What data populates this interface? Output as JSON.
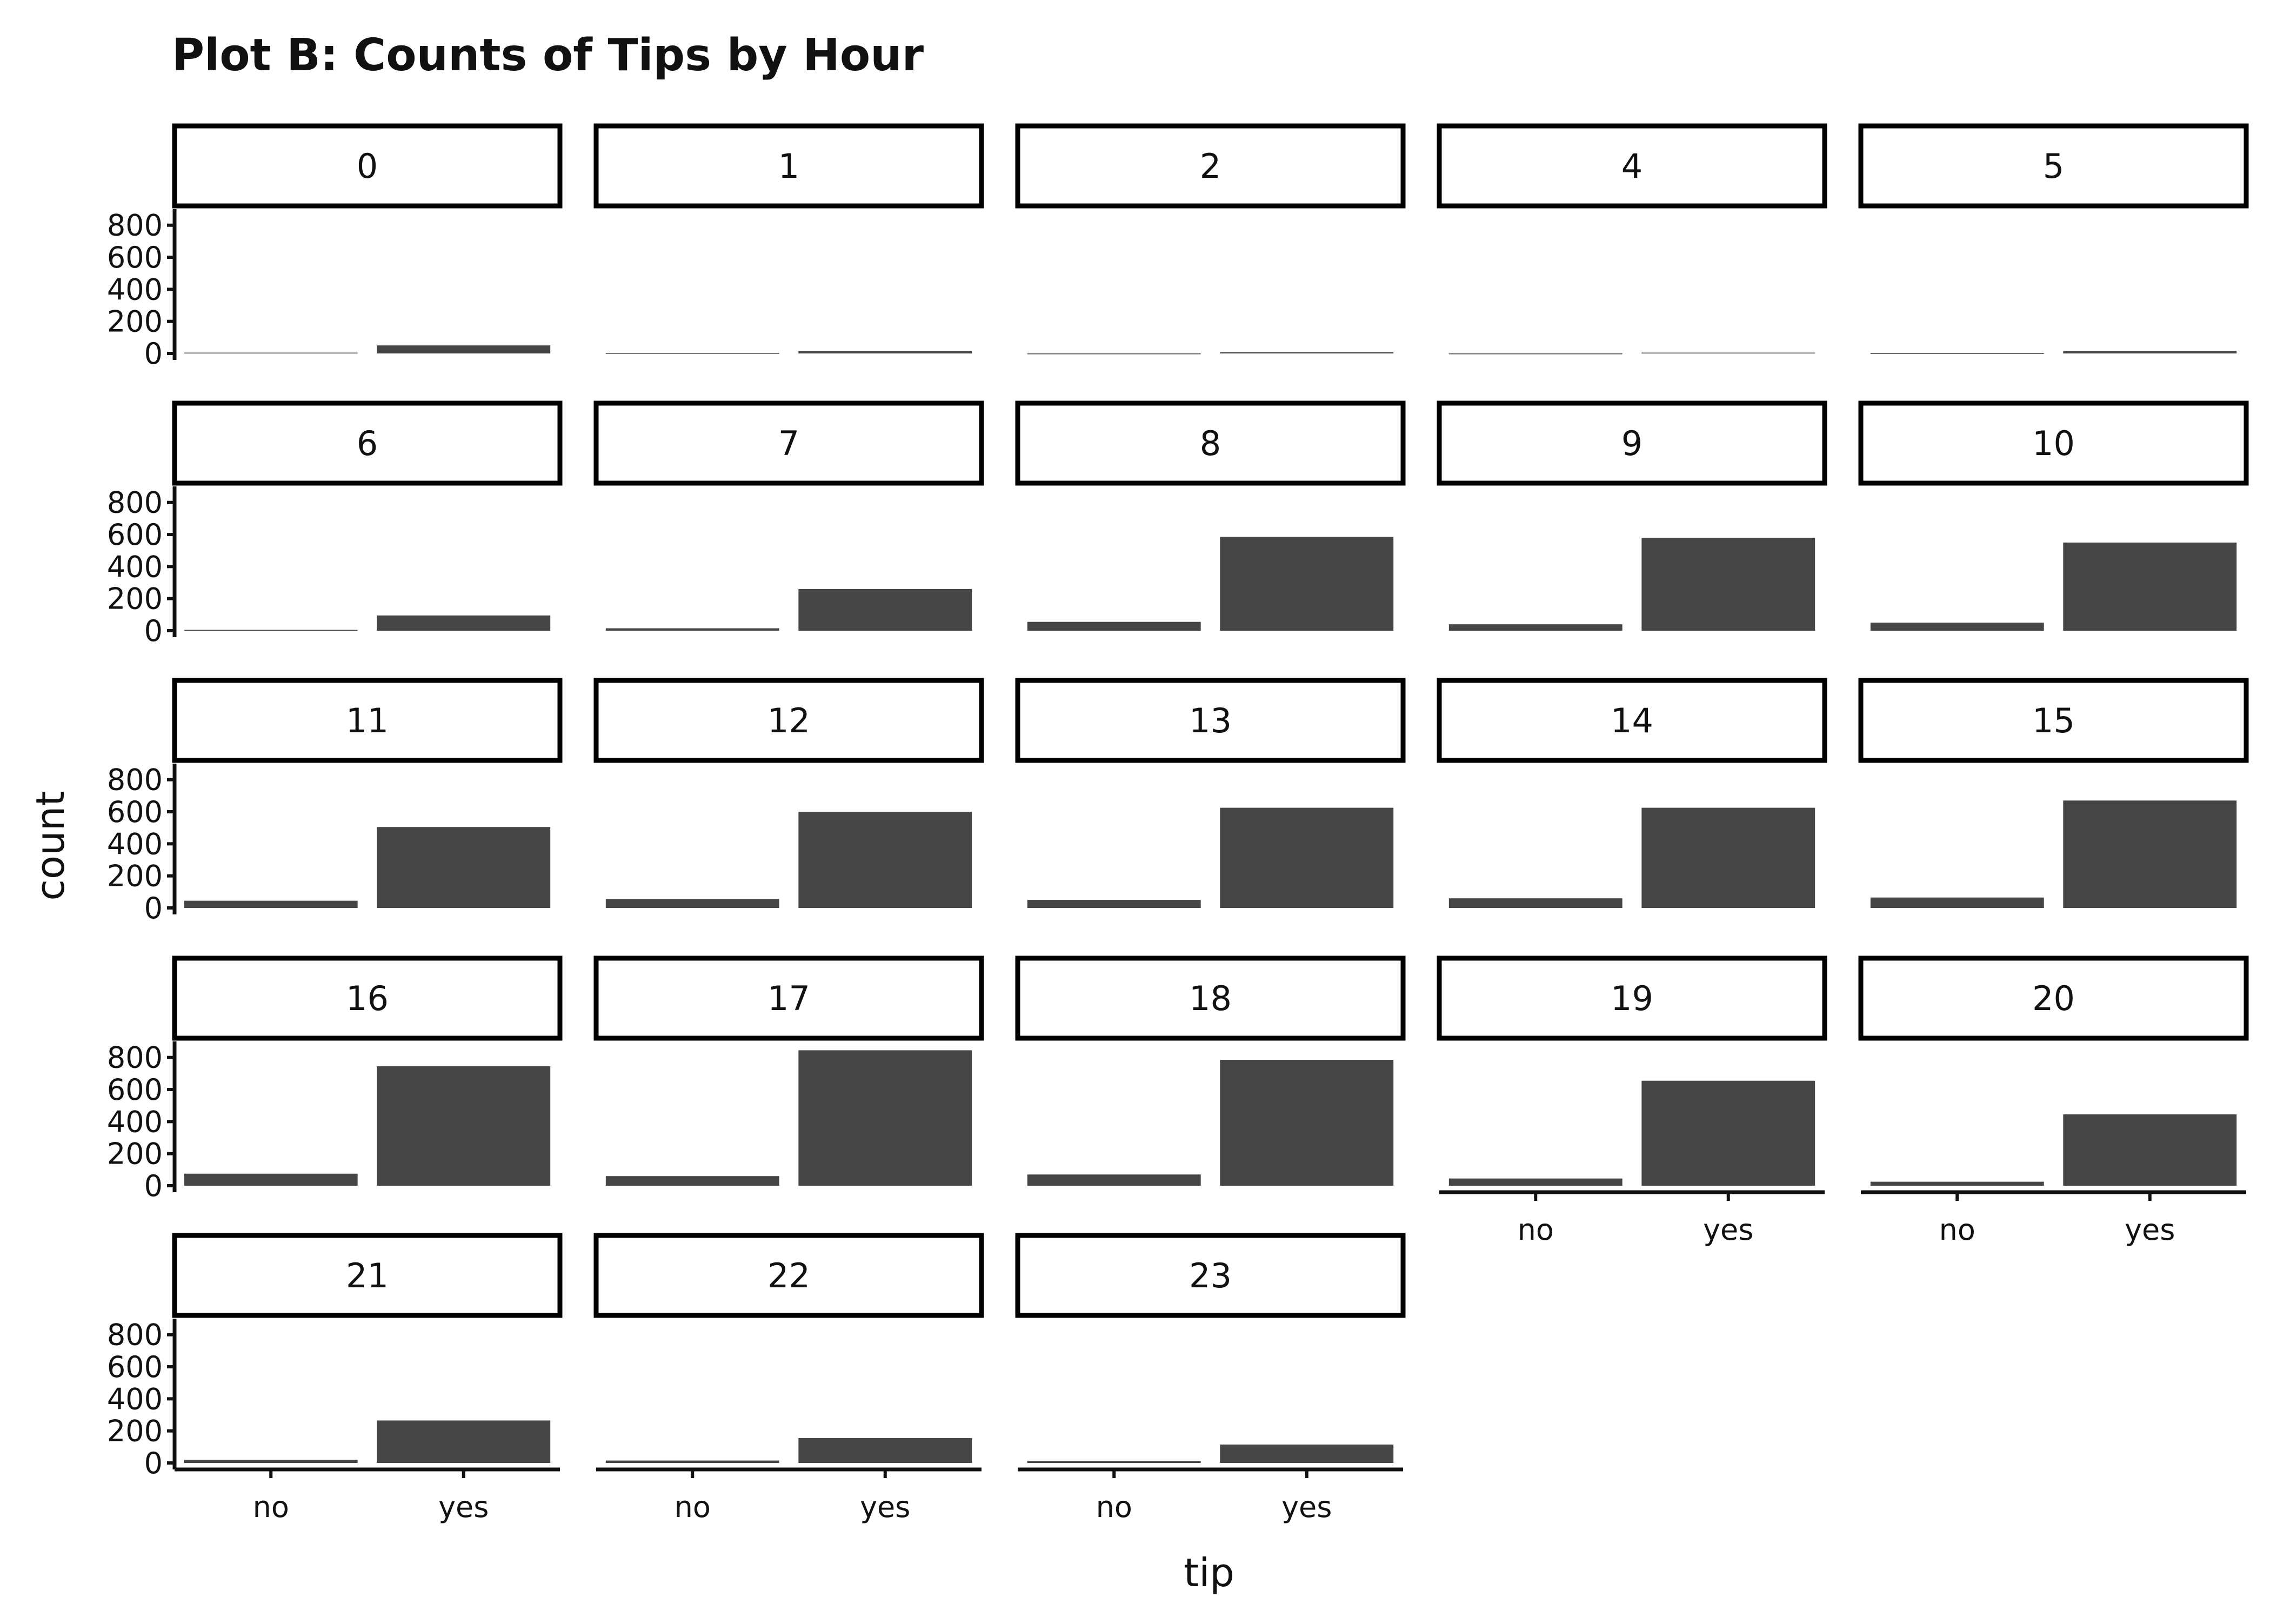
{
  "chart_data": {
    "type": "bar",
    "title": "Plot B: Counts of Tips by Hour",
    "xlabel": "tip",
    "ylabel": "count",
    "categories": [
      "no",
      "yes"
    ],
    "ylim": [
      0,
      880
    ],
    "yticks": [
      "0",
      "200",
      "400",
      "600",
      "800"
    ],
    "bar_color": "#454545",
    "grid": false,
    "facet_by": "hour",
    "facets": [
      {
        "label": "0",
        "values": [
          5,
          50
        ]
      },
      {
        "label": "1",
        "values": [
          3,
          15
        ]
      },
      {
        "label": "2",
        "values": [
          0,
          8
        ]
      },
      {
        "label": "4",
        "values": [
          0,
          5
        ]
      },
      {
        "label": "5",
        "values": [
          2,
          15
        ]
      },
      {
        "label": "6",
        "values": [
          5,
          95
        ]
      },
      {
        "label": "7",
        "values": [
          15,
          260
        ]
      },
      {
        "label": "8",
        "values": [
          55,
          585
        ]
      },
      {
        "label": "9",
        "values": [
          40,
          580
        ]
      },
      {
        "label": "10",
        "values": [
          50,
          550
        ]
      },
      {
        "label": "11",
        "values": [
          45,
          505
        ]
      },
      {
        "label": "12",
        "values": [
          55,
          600
        ]
      },
      {
        "label": "13",
        "values": [
          50,
          625
        ]
      },
      {
        "label": "14",
        "values": [
          60,
          625
        ]
      },
      {
        "label": "15",
        "values": [
          65,
          670
        ]
      },
      {
        "label": "16",
        "values": [
          75,
          745
        ]
      },
      {
        "label": "17",
        "values": [
          60,
          845
        ]
      },
      {
        "label": "18",
        "values": [
          70,
          785
        ]
      },
      {
        "label": "19",
        "values": [
          45,
          655
        ]
      },
      {
        "label": "20",
        "values": [
          25,
          445
        ]
      },
      {
        "label": "21",
        "values": [
          20,
          265
        ]
      },
      {
        "label": "22",
        "values": [
          15,
          155
        ]
      },
      {
        "label": "23",
        "values": [
          12,
          115
        ]
      }
    ]
  }
}
